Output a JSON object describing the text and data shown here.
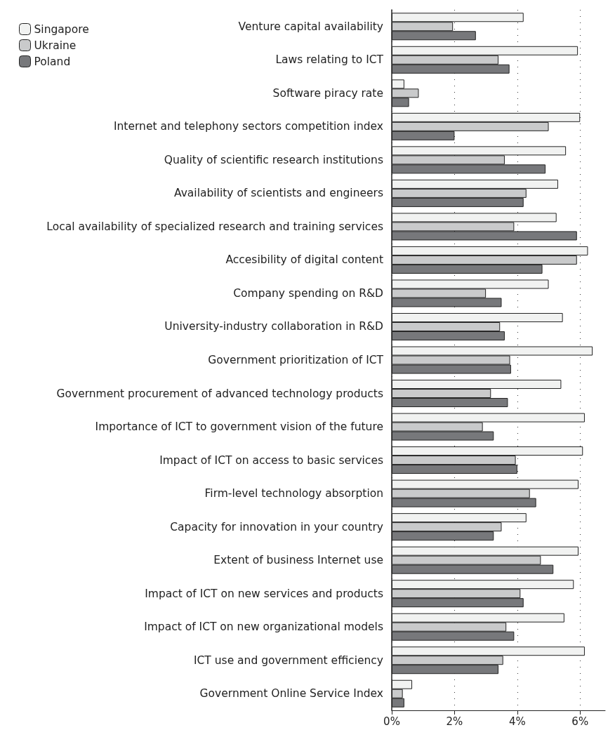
{
  "chart_data": {
    "type": "bar",
    "orientation": "horizontal",
    "categories": [
      "Venture capital availability",
      "Laws relating to ICT",
      "Software piracy rate",
      "Internet and telephony sectors competition index",
      "Quality of scientific research institutions",
      "Availability of scientists and engineers",
      "Local availability of specialized research and training services",
      "Accesibility of digital content",
      "Company spending on R&D",
      "University-industry collaboration in R&D",
      "Government prioritization of ICT",
      "Government procurement of advanced technology products",
      "Importance of ICT to government vision of the future",
      "Impact of ICT on access to basic services",
      "Firm-level technology absorption",
      "Capacity for innovation in your country",
      "Extent of business Internet use",
      "Impact of ICT on new services and products",
      "Impact of ICT on new organizational models",
      "ICT use and government efficiency",
      "Government Online Service Index"
    ],
    "series": [
      {
        "name": "Singapore",
        "color": "#f1f2f1",
        "values": [
          4.2,
          5.93,
          0.4,
          6.0,
          5.55,
          5.3,
          5.25,
          6.25,
          5.0,
          5.45,
          6.4,
          5.4,
          6.15,
          6.09,
          5.95,
          4.29,
          5.95,
          5.8,
          5.5,
          6.15,
          0.65
        ]
      },
      {
        "name": "Ukraine",
        "color": "#c9cacb",
        "values": [
          1.95,
          3.4,
          0.86,
          5.0,
          3.6,
          4.29,
          3.9,
          5.9,
          3.0,
          3.45,
          3.77,
          3.16,
          2.9,
          3.95,
          4.4,
          3.5,
          4.75,
          4.1,
          3.65,
          3.55,
          0.35
        ]
      },
      {
        "name": "Poland",
        "color": "#77787b",
        "values": [
          2.68,
          3.75,
          0.55,
          2.0,
          4.9,
          4.2,
          5.9,
          4.8,
          3.5,
          3.6,
          3.8,
          3.7,
          3.25,
          4.0,
          4.6,
          3.25,
          5.15,
          4.2,
          3.9,
          3.4,
          0.4
        ]
      }
    ],
    "xlim": [
      0,
      6.8
    ],
    "xticks": [
      {
        "value": 0,
        "label": "0%"
      },
      {
        "value": 2,
        "label": "2%"
      },
      {
        "value": 4,
        "label": "4%"
      },
      {
        "value": 6,
        "label": "6%"
      }
    ],
    "grid": "x",
    "legend": "top left"
  }
}
